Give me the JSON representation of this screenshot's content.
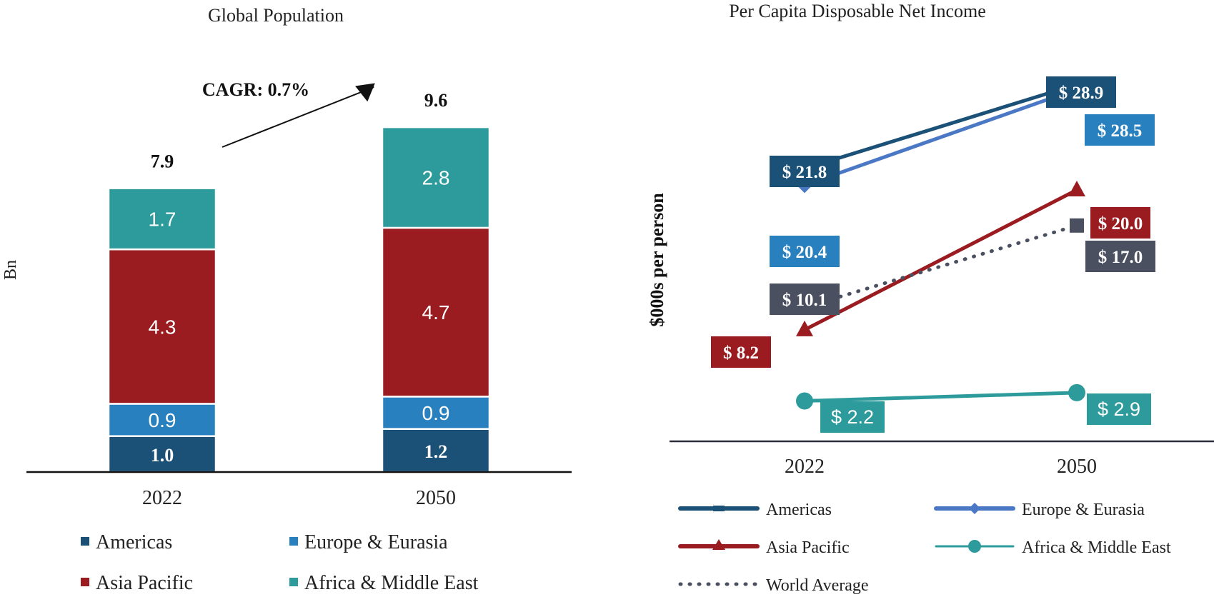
{
  "colors": {
    "americas": "#1b5077",
    "europe": "#2980bf",
    "europe_line": "#4a78c4",
    "asia": "#9a1c20",
    "africa": "#2d9b9b",
    "world": "#4a5060",
    "axis": "#2b2f3a",
    "text": "#222222"
  },
  "chart_data": [
    {
      "type": "bar",
      "stacked": true,
      "title": "Global Population",
      "ylabel": "Bn",
      "xlabel": "",
      "categories": [
        "2022",
        "2050"
      ],
      "series": [
        {
          "name": "Americas",
          "color_key": "americas",
          "values": [
            1.0,
            1.2
          ],
          "labels": [
            "1.0",
            "1.2"
          ],
          "label_bold": true
        },
        {
          "name": "Europe & Eurasia",
          "color_key": "europe",
          "values": [
            0.9,
            0.9
          ],
          "labels": [
            "0.9",
            "0.9"
          ],
          "label_bold": false
        },
        {
          "name": "Asia Pacific",
          "color_key": "asia",
          "values": [
            4.3,
            4.7
          ],
          "labels": [
            "4.3",
            "4.7"
          ],
          "label_bold": false
        },
        {
          "name": "Africa & Middle East",
          "color_key": "africa",
          "values": [
            1.7,
            2.8
          ],
          "labels": [
            "1.7",
            "2.8"
          ],
          "label_bold": false
        }
      ],
      "totals": [
        "7.9",
        "9.6"
      ],
      "annotation": "CAGR: 0.7%",
      "legend": {
        "placement": "bottom",
        "columns": 2
      }
    },
    {
      "type": "line",
      "title": "Per Capita Disposable Net Income",
      "ylabel": "$000s per person",
      "xlabel": "",
      "categories": [
        "2022",
        "2050"
      ],
      "ylim": [
        0,
        32
      ],
      "series": [
        {
          "name": "Americas",
          "color_key": "americas",
          "marker": "dash",
          "dotted": false,
          "values": [
            21.8,
            28.9
          ],
          "labels": [
            "$ 21.8",
            "$ 28.9"
          ]
        },
        {
          "name": "Europe & Eurasia",
          "color_key": "europe_line",
          "label_color_key": "europe",
          "marker": "diamond",
          "dotted": false,
          "values": [
            20.4,
            28.5
          ],
          "labels": [
            "$ 20.4",
            "$ 28.5"
          ]
        },
        {
          "name": "Asia Pacific",
          "color_key": "asia",
          "marker": "triangle",
          "dotted": false,
          "values": [
            8.2,
            20.0
          ],
          "labels": [
            "$ 8.2",
            "$ 20.0"
          ]
        },
        {
          "name": "Africa & Middle East",
          "color_key": "africa",
          "marker": "circle",
          "dotted": false,
          "values": [
            2.2,
            2.9
          ],
          "labels": [
            "$ 2.2",
            "$ 2.9"
          ]
        },
        {
          "name": "World Average",
          "color_key": "world",
          "marker": "square",
          "dotted": true,
          "values": [
            10.1,
            17.0
          ],
          "labels": [
            "$ 10.1",
            "$ 17.0"
          ]
        }
      ],
      "legend": {
        "placement": "bottom",
        "columns": 2
      }
    }
  ]
}
